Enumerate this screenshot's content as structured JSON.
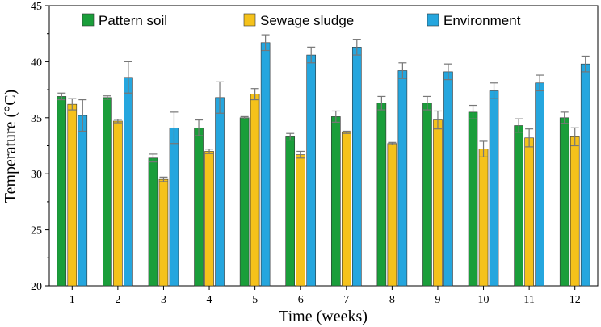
{
  "chart_data": {
    "type": "bar",
    "xlabel": "Time (weeks)",
    "ylabel": "Temperature (°C)",
    "ylim": [
      20,
      45
    ],
    "yticks": [
      "20",
      "25",
      "30",
      "35",
      "40",
      "45"
    ],
    "categories": [
      "1",
      "2",
      "3",
      "4",
      "5",
      "6",
      "7",
      "8",
      "9",
      "10",
      "11",
      "12"
    ],
    "legend_position": "top",
    "grid": false,
    "series": [
      {
        "name": "Pattern soil",
        "color": "#1a9e3a",
        "values": [
          36.9,
          36.8,
          31.4,
          34.1,
          35.0,
          33.3,
          35.1,
          36.3,
          36.3,
          35.5,
          34.3,
          35.0
        ],
        "errors": [
          0.3,
          0.15,
          0.35,
          0.7,
          0.1,
          0.3,
          0.5,
          0.6,
          0.6,
          0.6,
          0.6,
          0.5
        ]
      },
      {
        "name": "Sewage sludge",
        "color": "#f5c21b",
        "values": [
          36.2,
          34.7,
          29.5,
          32.0,
          37.1,
          31.7,
          33.7,
          32.7,
          34.8,
          32.2,
          33.2,
          33.3
        ],
        "errors": [
          0.5,
          0.15,
          0.2,
          0.2,
          0.5,
          0.3,
          0.1,
          0.1,
          0.8,
          0.7,
          0.8,
          0.8
        ]
      },
      {
        "name": "Environment",
        "color": "#25a6de",
        "values": [
          35.2,
          38.6,
          34.1,
          36.8,
          41.7,
          40.6,
          41.3,
          39.2,
          39.1,
          37.4,
          38.1,
          39.8
        ],
        "errors": [
          1.4,
          1.4,
          1.4,
          1.4,
          0.7,
          0.7,
          0.7,
          0.7,
          0.7,
          0.7,
          0.7,
          0.7
        ]
      }
    ]
  }
}
